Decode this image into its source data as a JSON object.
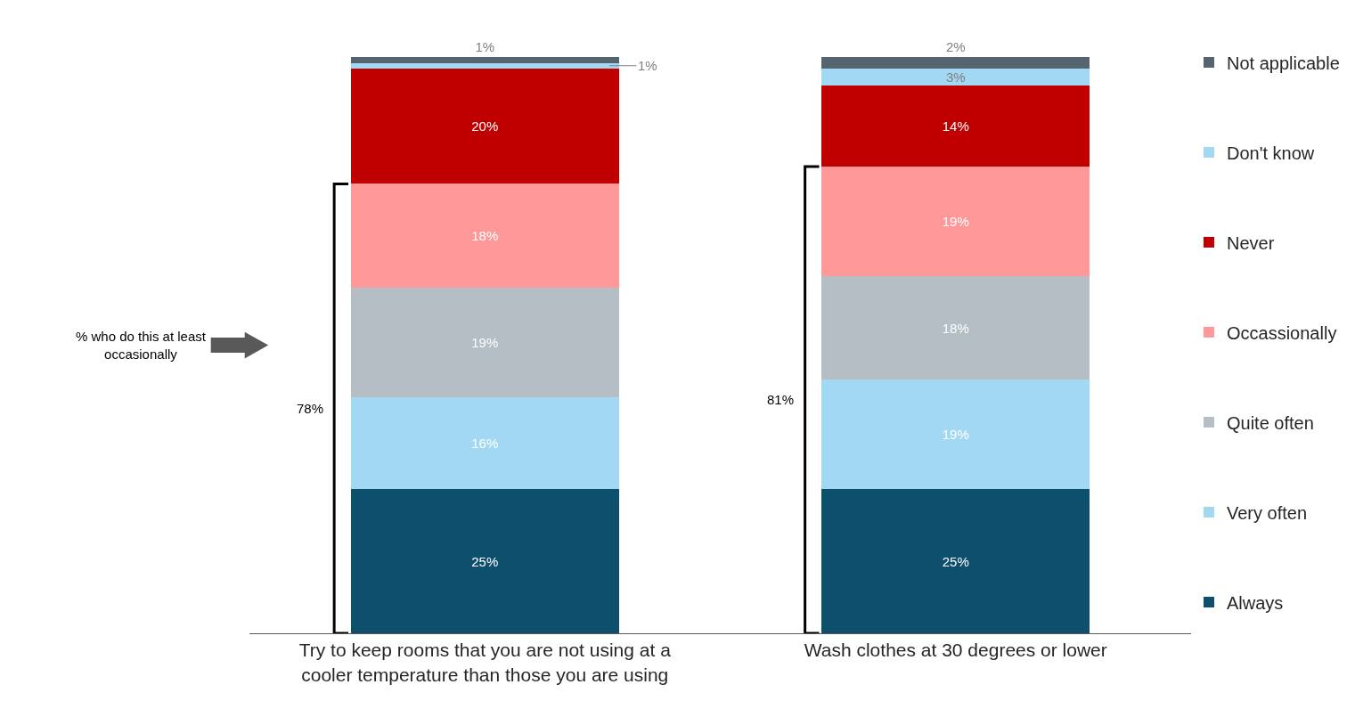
{
  "chart_data": {
    "type": "bar",
    "stacked": true,
    "legend": "right",
    "grid": false,
    "categories": [
      "Try to keep rooms that you are not using at a cooler temperature than those you are using",
      "Wash clothes at 30 degrees or lower"
    ],
    "series": [
      {
        "name": "Always",
        "color": "#0e4f6e",
        "values": [
          25,
          25
        ],
        "value_labels": [
          "25%",
          "25%"
        ]
      },
      {
        "name": "Very often",
        "color": "#a3d8f2",
        "values": [
          16,
          19
        ],
        "value_labels": [
          "16%",
          "19%"
        ]
      },
      {
        "name": "Quite often",
        "color": "#b4bec4",
        "values": [
          19,
          18
        ],
        "value_labels": [
          "19%",
          "18%"
        ]
      },
      {
        "name": "Occassionally",
        "color": "#ff9999",
        "values": [
          18,
          19
        ],
        "value_labels": [
          "18%",
          "19%"
        ]
      },
      {
        "name": "Never",
        "color": "#c00000",
        "values": [
          20,
          14
        ],
        "value_labels": [
          "20%",
          "14%"
        ]
      },
      {
        "name": "Don't know",
        "color": "#a3d8f2",
        "values": [
          1,
          3
        ],
        "value_labels": [
          "1%",
          "3%"
        ]
      },
      {
        "name": "Not applicable",
        "color": "#55646e",
        "values": [
          1,
          2
        ],
        "value_labels": [
          "1%",
          "2%"
        ]
      }
    ],
    "annotations": [
      "% who do this at least occasionally",
      "78%",
      "81%"
    ]
  }
}
